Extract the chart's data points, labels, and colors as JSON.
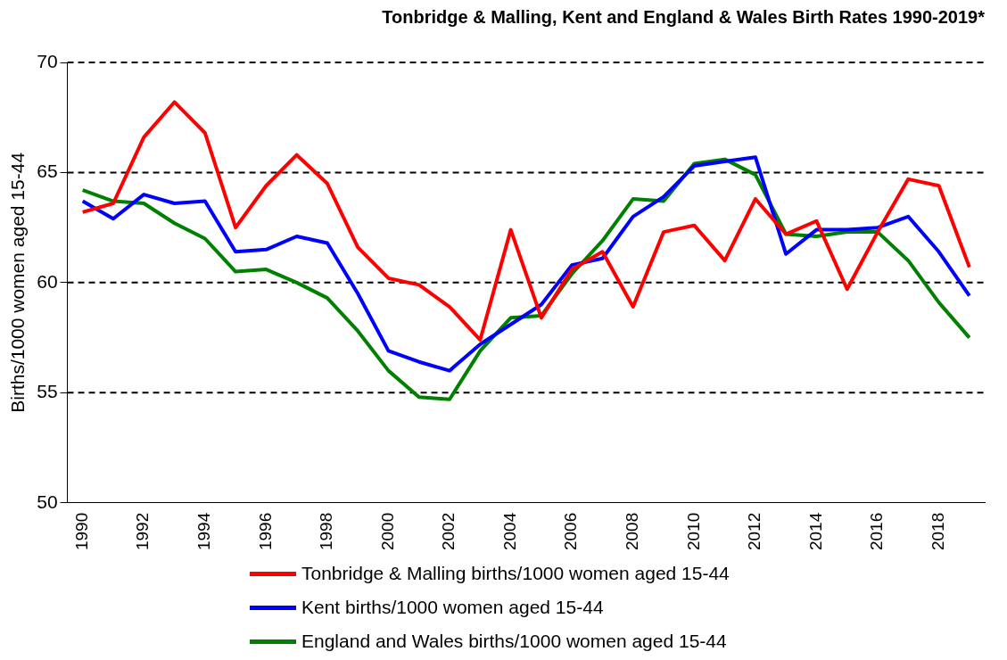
{
  "chart_data": {
    "type": "line",
    "title": "Tonbridge & Malling, Kent and England & Wales Birth Rates 1990-2019*",
    "ylabel": "Births/1000 women aged 15-44",
    "categories": [
      "1990",
      null,
      "1992",
      null,
      "1994",
      null,
      "1996",
      null,
      "1998",
      null,
      "2000",
      null,
      "2002",
      null,
      "2004",
      null,
      "2006",
      null,
      "2008",
      null,
      "2010",
      null,
      "2012",
      null,
      "2014",
      null,
      "2016",
      null,
      "2018",
      null
    ],
    "series": [
      {
        "name": "Tonbridge & Malling births/1000 women aged 15-44",
        "color": "#ff0000",
        "values": [
          63.2,
          63.6,
          66.6,
          68.2,
          66.8,
          62.5,
          64.4,
          65.8,
          64.5,
          61.6,
          60.2,
          59.9,
          58.9,
          57.4,
          62.4,
          58.4,
          60.6,
          61.4,
          58.9,
          62.3,
          62.6,
          61.0,
          63.8,
          62.2,
          62.8,
          59.7,
          62.3,
          64.7,
          64.4,
          60.7
        ]
      },
      {
        "name": "Kent births/1000 women aged 15-44",
        "color": "#0000ff",
        "values": [
          63.7,
          62.9,
          64.0,
          63.6,
          63.7,
          61.4,
          61.5,
          62.1,
          61.8,
          59.5,
          56.9,
          56.4,
          56.0,
          57.2,
          58.1,
          59.0,
          60.8,
          61.1,
          63.0,
          63.9,
          65.3,
          65.5,
          65.7,
          61.3,
          62.4,
          62.4,
          62.5,
          63.0,
          61.4,
          59.4
        ]
      },
      {
        "name": "England and Wales births/1000 women aged 15-44",
        "color": "#008000",
        "values": [
          64.2,
          63.7,
          63.6,
          62.7,
          62.0,
          60.5,
          60.6,
          60.0,
          59.3,
          57.8,
          56.0,
          54.8,
          54.7,
          56.9,
          58.4,
          58.5,
          60.4,
          61.9,
          63.8,
          63.7,
          65.4,
          65.6,
          64.9,
          62.2,
          62.1,
          62.3,
          62.3,
          61.0,
          59.1,
          57.5
        ]
      }
    ],
    "ylim": [
      50,
      70
    ],
    "yticks": [
      50,
      55,
      60,
      65,
      70
    ],
    "grid": "y",
    "legend": "bottom",
    "marker": "none",
    "line_style": "solid"
  }
}
